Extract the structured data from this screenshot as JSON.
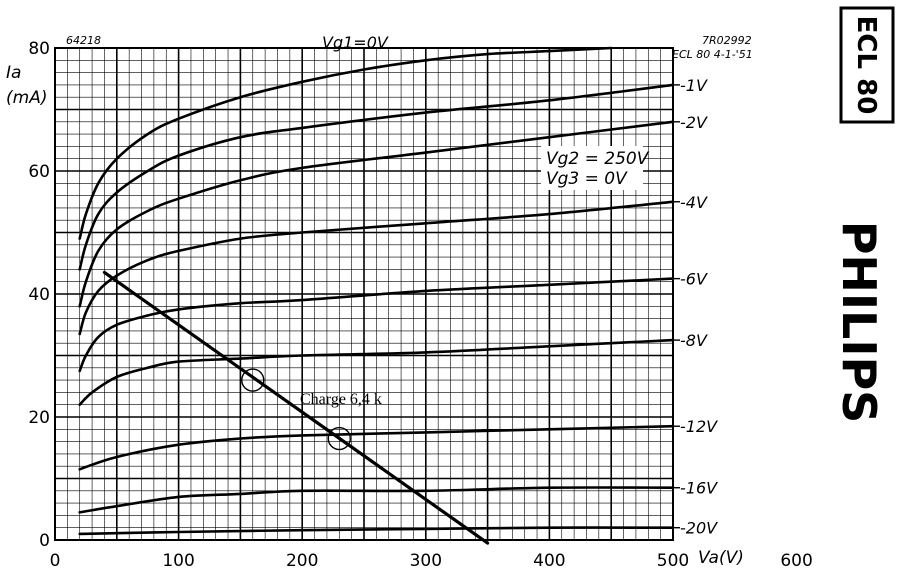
{
  "chart_data": {
    "type": "line",
    "x_axis_label": "Va(V)",
    "y_axis_label_1": "Ia",
    "y_axis_label_2": "(mA)",
    "xlim": [
      0,
      600
    ],
    "ylim": [
      0,
      80
    ],
    "x_ticks": [
      0,
      100,
      200,
      300,
      400,
      500,
      600
    ],
    "y_ticks": [
      0,
      20,
      40,
      60,
      80
    ],
    "grid": true,
    "top_left_note": "64218",
    "top_right_note_1": "7R02992",
    "top_right_note_2": "ECL 80 4-1-'51",
    "conditions": [
      "Vg2 = 250V",
      "Vg3 = 0V"
    ],
    "tube_label": "ECL 80",
    "brand": "PHILIPS",
    "series": [
      {
        "name": "Vg1=0V",
        "x": [
          20,
          25,
          35,
          50,
          75,
          100,
          150,
          200,
          250,
          300,
          350,
          400,
          450
        ],
        "y": [
          49,
          53,
          58,
          62,
          66,
          68.5,
          72,
          74.5,
          76.5,
          78,
          79,
          79.5,
          80
        ]
      },
      {
        "name": "-1V",
        "x": [
          20,
          25,
          35,
          50,
          75,
          100,
          150,
          200,
          300,
          400,
          500
        ],
        "y": [
          44,
          48,
          53,
          56.5,
          60,
          62.5,
          65.5,
          67,
          69.5,
          71.5,
          74
        ]
      },
      {
        "name": "-2V",
        "x": [
          20,
          25,
          35,
          50,
          75,
          100,
          150,
          200,
          300,
          400,
          500
        ],
        "y": [
          38,
          42,
          47,
          50.5,
          53.5,
          55.5,
          58.5,
          60.5,
          63,
          65.5,
          68
        ]
      },
      {
        "name": "-4V",
        "x": [
          20,
          25,
          35,
          50,
          75,
          100,
          150,
          200,
          300,
          400,
          500
        ],
        "y": [
          33.5,
          37,
          40.5,
          43,
          45.5,
          47,
          49,
          50,
          51.5,
          53,
          55
        ]
      },
      {
        "name": "-6V",
        "x": [
          20,
          25,
          35,
          50,
          75,
          100,
          150,
          200,
          300,
          400,
          500
        ],
        "y": [
          27.5,
          30,
          33,
          35,
          36.5,
          37.5,
          38.5,
          39,
          40.5,
          41.5,
          42.5
        ]
      },
      {
        "name": "-8V",
        "x": [
          20,
          30,
          50,
          75,
          100,
          150,
          200,
          300,
          400,
          500
        ],
        "y": [
          22,
          24,
          26.5,
          28,
          29,
          29.5,
          30,
          30.5,
          31.5,
          32.5
        ]
      },
      {
        "name": "-12V",
        "x": [
          20,
          50,
          100,
          150,
          200,
          300,
          400,
          500
        ],
        "y": [
          11.5,
          13.5,
          15.5,
          16.5,
          17,
          17.5,
          18,
          18.5
        ]
      },
      {
        "name": "-16V",
        "x": [
          20,
          50,
          100,
          150,
          200,
          300,
          400,
          500
        ],
        "y": [
          4.5,
          5.5,
          7,
          7.5,
          8,
          8,
          8.5,
          8.5
        ]
      },
      {
        "name": "-20V",
        "x": [
          20,
          100,
          200,
          300,
          400,
          500
        ],
        "y": [
          1,
          1.3,
          1.6,
          1.8,
          2,
          2
        ]
      }
    ],
    "label_anchor_y": [
      null,
      74,
      68,
      55,
      42.5,
      32.5,
      18.5,
      8.5,
      2
    ],
    "load_line": {
      "label": "Charge 6,4 k",
      "x": [
        40,
        350
      ],
      "y": [
        43.5,
        -0.5
      ]
    },
    "operating_points": [
      {
        "x": 160,
        "y": 26
      },
      {
        "x": 230,
        "y": 16.5
      }
    ]
  }
}
